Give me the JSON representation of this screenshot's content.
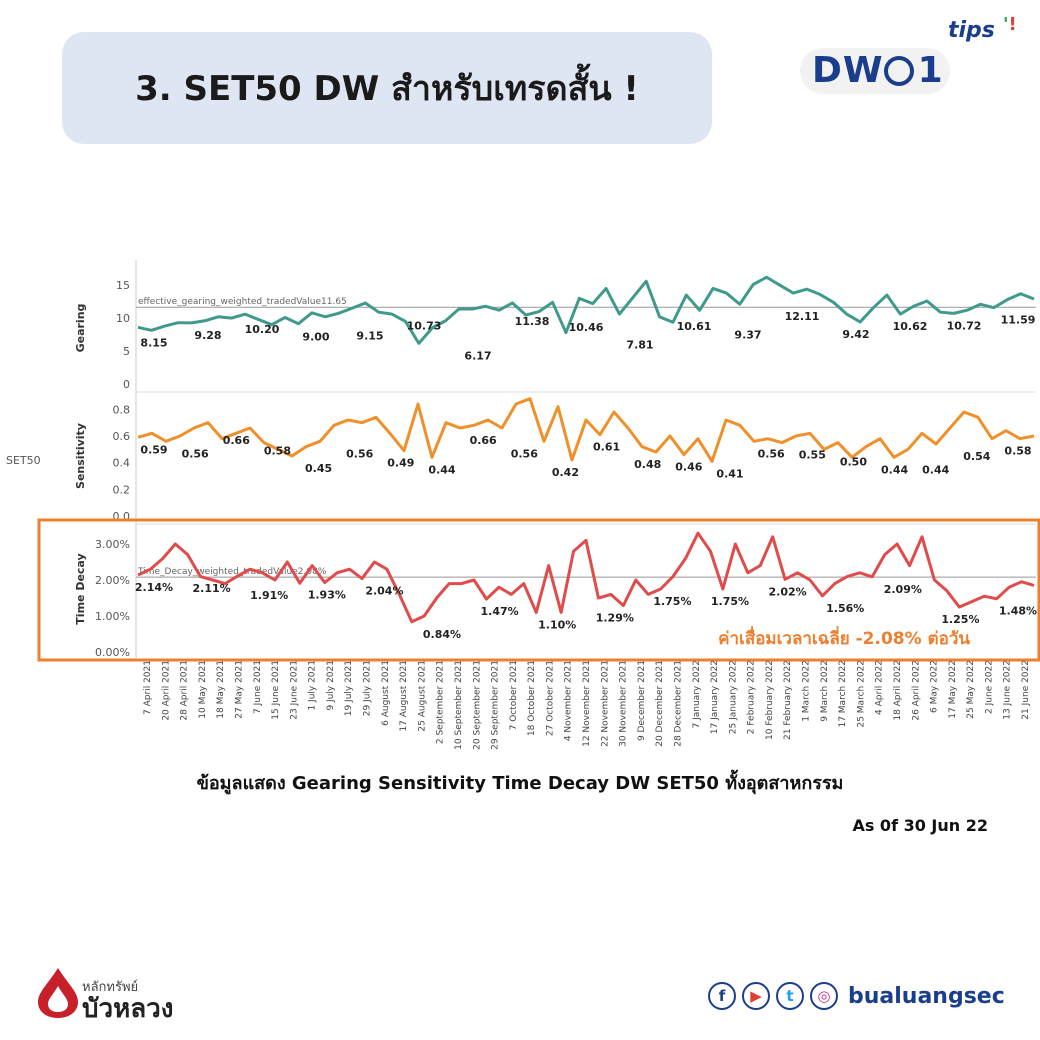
{
  "header": {
    "title": "3. SET50 DW สำหรับเทรดสั้น !"
  },
  "brand": {
    "tips": "tips",
    "dw": "DW01"
  },
  "caption": "ข้อมูลแสดง Gearing Sensitivity Time Decay DW SET50 ทั้งอุตสาหกรรม",
  "as_of": "As 0f 30 Jun 22",
  "footer": {
    "logo_small": "หลักทรัพย์",
    "logo_big": "บัวหลวง",
    "handle": "bualuangsec",
    "icons": [
      "facebook-icon",
      "youtube-icon",
      "twitter-icon",
      "instagram-icon"
    ]
  },
  "colors": {
    "gearing": "#3f9a8c",
    "sensitivity": "#f0902a",
    "time_decay": "#e04b4b",
    "highlight": "#ee7f2e",
    "title_bg": "#dfe6f3"
  },
  "chart_data": {
    "type": "line",
    "row_label": "SET50",
    "x_ticks": [
      "7 April 2021",
      "20 April 2021",
      "28 April 2021",
      "10 May 2021",
      "18 May 2021",
      "27 May 2021",
      "7 June 2021",
      "15 June 2021",
      "23 June 2021",
      "1 July 2021",
      "9 July 2021",
      "19 July 2021",
      "29 July 2021",
      "6 August 2021",
      "17 August 2021",
      "25 August 2021",
      "2 September 2021",
      "10 September 2021",
      "20 September 2021",
      "29 September 2021",
      "7 October 2021",
      "18 October 2021",
      "27 October 2021",
      "4 November 2021",
      "12 November 2021",
      "22 November 2021",
      "30 November 2021",
      "9 December 2021",
      "20 December 2021",
      "28 December 2021",
      "7 January 2022",
      "17 January 2022",
      "25 January 2022",
      "2 February 2022",
      "10 February 2022",
      "21 February 2022",
      "1 March 2022",
      "9 March 2022",
      "17 March 2022",
      "25 March 2022",
      "4 April 2022",
      "18 April 2022",
      "26 April 2022",
      "6 May 2022",
      "17 May 2022",
      "25 May 2022",
      "2 June 2022",
      "13 June 2022",
      "21 June 2022"
    ],
    "panels": [
      {
        "name": "Gearing",
        "ylabel": "Gearing",
        "ylim": [
          0,
          17
        ],
        "yticks": [
          "15",
          "10",
          "5",
          "0"
        ],
        "ytick_values": [
          15,
          10,
          5,
          0
        ],
        "ref_label": "effective_gearing_weighted_tradedValue11.65",
        "ref_value": 11.65,
        "values": [
          8.6,
          8.15,
          8.8,
          9.3,
          9.28,
          9.6,
          10.2,
          10.0,
          10.6,
          9.8,
          9.0,
          10.1,
          9.15,
          10.8,
          10.2,
          10.73,
          11.5,
          12.3,
          10.9,
          10.6,
          9.5,
          6.17,
          8.5,
          9.6,
          11.4,
          11.38,
          11.8,
          11.2,
          12.3,
          10.46,
          11.0,
          12.4,
          7.81,
          13.0,
          12.2,
          14.5,
          10.61,
          13.1,
          15.6,
          10.2,
          9.37,
          13.5,
          11.2,
          14.5,
          13.8,
          12.11,
          15.1,
          16.2,
          15.0,
          13.8,
          14.4,
          13.6,
          12.4,
          10.6,
          9.42,
          11.6,
          13.5,
          10.62,
          11.8,
          12.6,
          10.9,
          10.72,
          11.2,
          12.1,
          11.59,
          12.8,
          13.7,
          12.9
        ]
      },
      {
        "name": "Sensitivity",
        "ylabel": "Sensitivity",
        "ylim": [
          0,
          0.9
        ],
        "yticks": [
          "0.8",
          "0.6",
          "0.4",
          "0.2",
          "0.0"
        ],
        "ytick_values": [
          0.8,
          0.6,
          0.4,
          0.2,
          0.0
        ],
        "values": [
          0.59,
          0.62,
          0.56,
          0.6,
          0.66,
          0.7,
          0.58,
          0.62,
          0.66,
          0.55,
          0.5,
          0.45,
          0.52,
          0.56,
          0.68,
          0.72,
          0.7,
          0.74,
          0.62,
          0.49,
          0.84,
          0.44,
          0.7,
          0.66,
          0.68,
          0.72,
          0.66,
          0.84,
          0.88,
          0.56,
          0.82,
          0.42,
          0.72,
          0.61,
          0.78,
          0.66,
          0.52,
          0.48,
          0.6,
          0.46,
          0.58,
          0.41,
          0.72,
          0.68,
          0.56,
          0.58,
          0.55,
          0.6,
          0.62,
          0.5,
          0.55,
          0.44,
          0.52,
          0.58,
          0.44,
          0.5,
          0.62,
          0.54,
          0.66,
          0.78,
          0.74,
          0.58,
          0.64,
          0.58,
          0.6
        ]
      },
      {
        "name": "Time Decay",
        "ylabel": "Time Decay",
        "ylim": [
          0,
          3.5
        ],
        "yticks": [
          "3.00%",
          "2.00%",
          "1.00%",
          "0.00%"
        ],
        "ytick_values": [
          3,
          2,
          1,
          0
        ],
        "ref_label": "Time_Decay_weighted_tradedValue2.08%",
        "ref_value": 2.08,
        "values": [
          2.14,
          2.3,
          2.6,
          3.0,
          2.7,
          2.1,
          2.0,
          1.9,
          2.11,
          2.3,
          2.2,
          2.0,
          2.5,
          1.91,
          2.4,
          1.93,
          2.2,
          2.3,
          2.04,
          2.5,
          2.3,
          1.6,
          0.84,
          1.0,
          1.5,
          1.9,
          1.9,
          2.0,
          1.47,
          1.8,
          1.6,
          1.9,
          1.1,
          2.4,
          1.1,
          2.8,
          3.1,
          1.5,
          1.6,
          1.29,
          2.0,
          1.6,
          1.75,
          2.1,
          2.6,
          3.3,
          2.8,
          1.75,
          3.0,
          2.2,
          2.4,
          3.2,
          2.02,
          2.2,
          2.0,
          1.56,
          1.9,
          2.1,
          2.2,
          2.09,
          2.7,
          3.0,
          2.4,
          3.2,
          2.0,
          1.7,
          1.25,
          1.4,
          1.55,
          1.48,
          1.8,
          1.95,
          1.85
        ]
      }
    ],
    "data_labels": {
      "Gearing": [
        "8.15",
        "9.28",
        "10.20",
        "9.00",
        "9.15",
        "10.73",
        "6.17",
        "11.38",
        "10.46",
        "7.81",
        "10.61",
        "9.37",
        "12.11",
        "9.42",
        "10.62",
        "10.72",
        "11.59"
      ],
      "Sensitivity": [
        "0.59",
        "0.56",
        "0.66",
        "0.58",
        "0.45",
        "0.56",
        "0.49",
        "0.44",
        "0.66",
        "0.56",
        "0.42",
        "0.61",
        "0.48",
        "0.46",
        "0.41",
        "0.56",
        "0.55",
        "0.50",
        "0.44",
        "0.44",
        "0.54",
        "0.58"
      ],
      "Time Decay": [
        "2.14%",
        "2.11%",
        "1.91%",
        "1.93%",
        "2.04%",
        "0.84%",
        "1.47%",
        "1.10%",
        "1.29%",
        "1.75%",
        "1.75%",
        "2.02%",
        "1.56%",
        "2.09%",
        "1.25%",
        "1.48%"
      ]
    },
    "annotation": "ค่าเสื่อมเวลาเฉลี่ย -2.08% ต่อวัน"
  }
}
